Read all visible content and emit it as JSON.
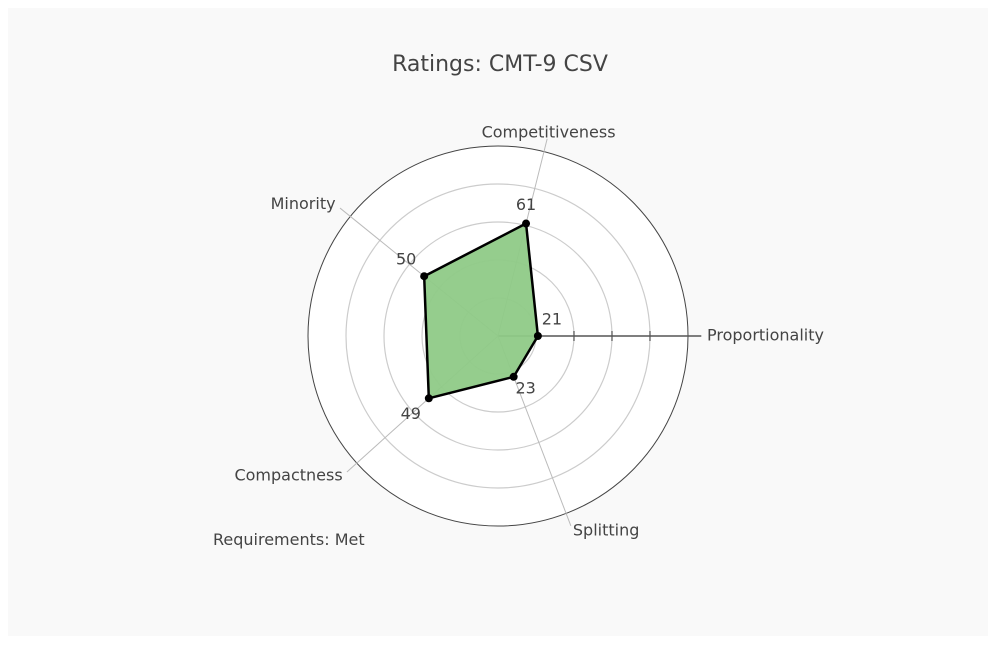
{
  "chart_data": {
    "type": "radar",
    "title": "Ratings: CMT-9 CSV",
    "axes": [
      "Proportionality",
      "Competitiveness",
      "Minority",
      "Compactness",
      "Splitting"
    ],
    "values": [
      21,
      61,
      50,
      49,
      23
    ],
    "value_labels": [
      "21",
      "61",
      "50",
      "49",
      "23"
    ],
    "rlim": [
      0,
      100
    ],
    "radial_gridlines": [
      20,
      40,
      60,
      80
    ],
    "grid": true,
    "fill_color": "#8fca87",
    "line_color": "#000000"
  },
  "footer": {
    "requirements": "Requirements: Met"
  }
}
